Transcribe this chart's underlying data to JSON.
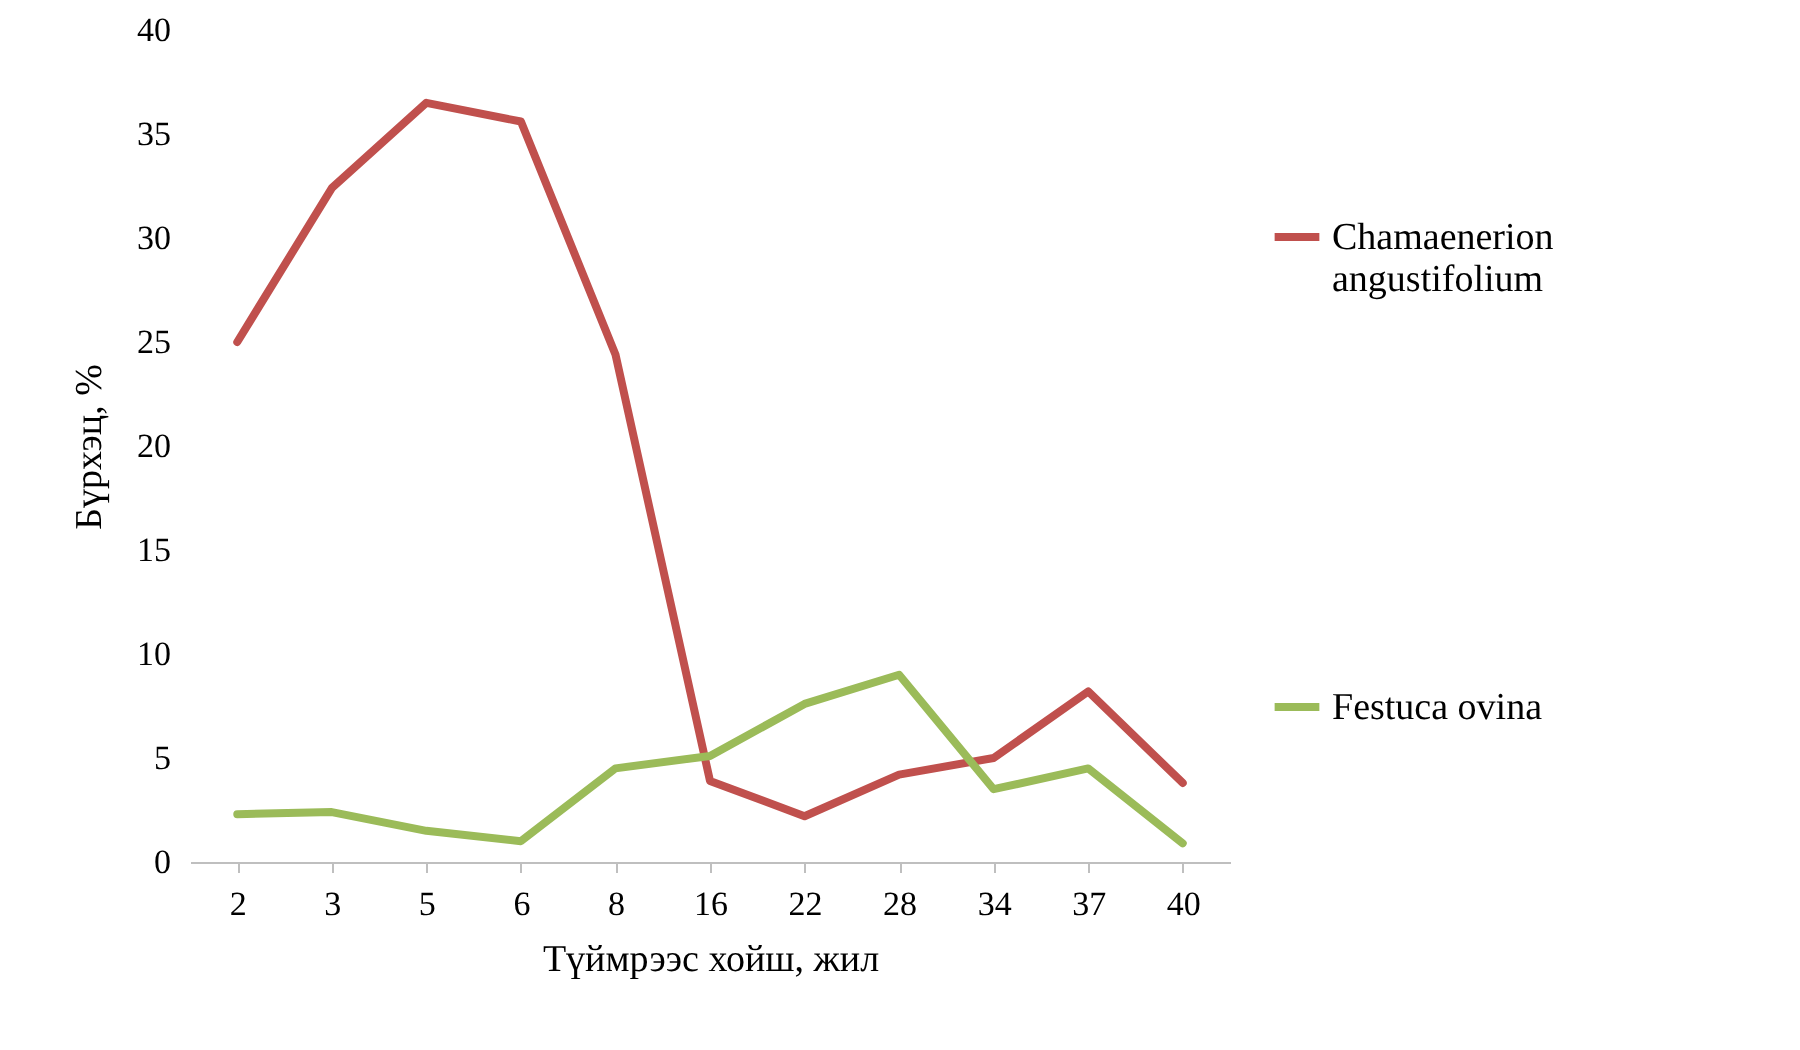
{
  "chart_data": {
    "type": "line",
    "xlabel": "Түймрээс хойш, жил",
    "ylabel": "Бүрхэц, %",
    "categories": [
      "2",
      "3",
      "5",
      "6",
      "8",
      "16",
      "22",
      "28",
      "34",
      "37",
      "40"
    ],
    "series": [
      {
        "name": "Chamaenerion angustifolium",
        "color": "#c0504d",
        "values": [
          25,
          32.4,
          36.5,
          35.6,
          24.4,
          3.9,
          2.2,
          4.2,
          5,
          8.2,
          3.8
        ]
      },
      {
        "name": "Festuca ovina",
        "color": "#9bbb59",
        "values": [
          2.3,
          2.4,
          1.5,
          1,
          4.5,
          5.1,
          7.6,
          9,
          3.5,
          4.5,
          0.9
        ]
      }
    ],
    "ylim": [
      0,
      40
    ],
    "yticks": [
      0,
      5,
      10,
      15,
      20,
      25,
      30,
      35,
      40
    ],
    "grid": false,
    "legend": "right",
    "marker": "none",
    "line_style": "solid"
  }
}
